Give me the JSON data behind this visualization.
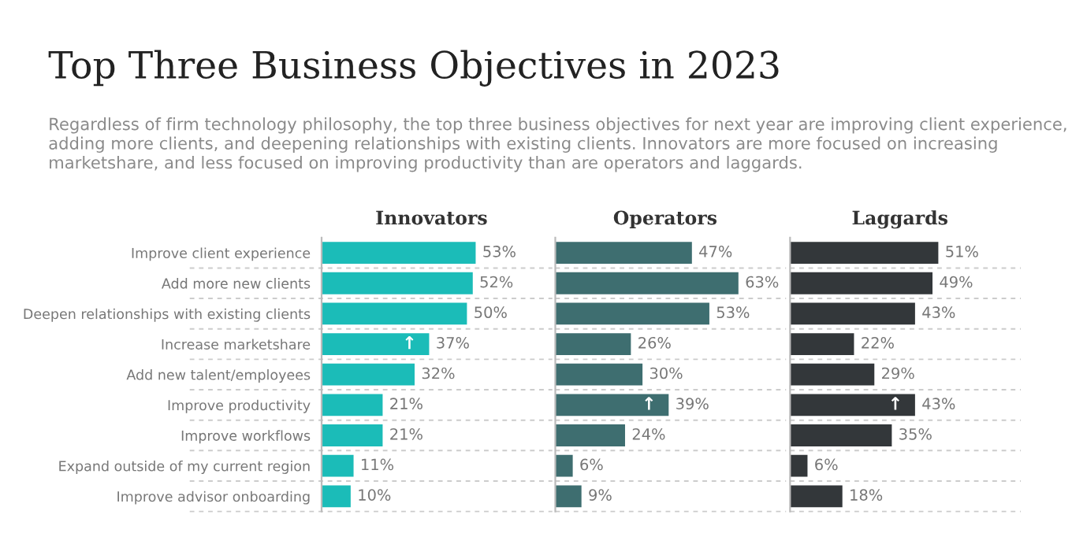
{
  "chart_data": [
    {
      "type": "other",
      "title": "Top Three Business Objectives in 2023",
      "subtitle": "Regardless of firm technology philosophy, the top three business objectives for next year are improving client experience, adding more clients, and deepening relationships with existing clients. Innovators are more focused on increasing marketshare, and less focused on improving productivity than are operators and laggards."
    },
    {
      "type": "bar",
      "orientation": "horizontal",
      "title": "Innovators",
      "color": "#1bbcb8",
      "grid": "y",
      "tick_labels": "y",
      "categories": [
        "Improve client experience",
        "Add more new clients",
        "Deepen relationships with existing clients",
        "Increase marketshare",
        "Add new talent/employees",
        "Improve productivity",
        "Improve workflows",
        "Expand outside of my current region",
        "Improve advisor onboarding"
      ],
      "values": [
        53,
        52,
        50,
        37,
        32,
        21,
        21,
        11,
        10
      ],
      "value_labels": [
        "53%",
        "52%",
        "50%",
        "37%",
        "32%",
        "21%",
        "21%",
        "11%",
        "10%"
      ],
      "annotations": [
        {
          "text": "↑",
          "x": 37,
          "y": "Increase marketshare"
        }
      ]
    },
    {
      "type": "bar",
      "orientation": "horizontal",
      "title": "Operators",
      "color": "#3e6e70",
      "grid": "y",
      "tick_labels": false,
      "categories": [
        "Improve client experience",
        "Add more new clients",
        "Deepen relationships with existing clients",
        "Increase marketshare",
        "Add new talent/employees",
        "Improve productivity",
        "Improve workflows",
        "Expand outside of my current region",
        "Improve advisor onboarding"
      ],
      "values": [
        47,
        63,
        53,
        26,
        30,
        39,
        24,
        6,
        9
      ],
      "value_labels": [
        "47%",
        "63%",
        "53%",
        "26%",
        "30%",
        "39%",
        "24%",
        "6%",
        "9%"
      ],
      "annotations": [
        {
          "text": "↑",
          "x": 39,
          "y": "Improve productivity"
        }
      ]
    },
    {
      "type": "bar",
      "orientation": "horizontal",
      "title": "Laggards",
      "color": "#33373a",
      "grid": "y",
      "tick_labels": false,
      "categories": [
        "Improve client experience",
        "Add more new clients",
        "Deepen relationships with existing clients",
        "Increase marketshare",
        "Add new talent/employees",
        "Improve productivity",
        "Improve workflows",
        "Expand outside of my current region",
        "Improve advisor onboarding"
      ],
      "values": [
        51,
        49,
        43,
        22,
        29,
        43,
        35,
        6,
        18
      ],
      "value_labels": [
        "51%",
        "49%",
        "43%",
        "22%",
        "29%",
        "43%",
        "35%",
        "6%",
        "18%"
      ],
      "annotations": [
        {
          "text": "↑",
          "x": 43,
          "y": "Improve productivity"
        }
      ]
    }
  ]
}
